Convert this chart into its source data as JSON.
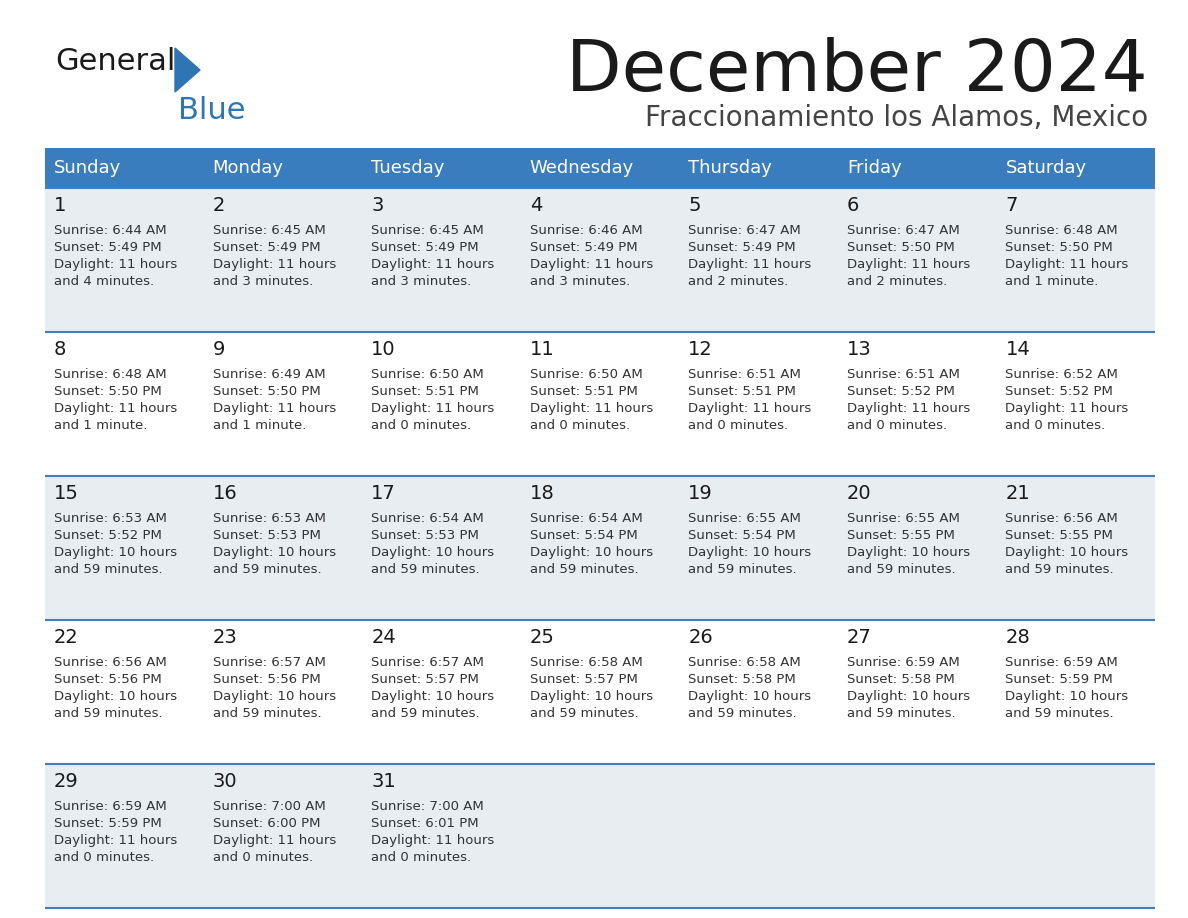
{
  "title": "December 2024",
  "subtitle": "Fraccionamiento los Alamos, Mexico",
  "days_of_week": [
    "Sunday",
    "Monday",
    "Tuesday",
    "Wednesday",
    "Thursday",
    "Friday",
    "Saturday"
  ],
  "header_bg": "#3a7dbf",
  "header_text": "#ffffff",
  "row_bg_odd": "#e8edf2",
  "row_bg_even": "#ffffff",
  "cell_border": "#4080c0",
  "day_num_color": "#1a1a1a",
  "info_color": "#333333",
  "title_color": "#1a1a1a",
  "subtitle_color": "#444444",
  "logo_general_color": "#1a1a1a",
  "logo_blue_color": "#2e75b6",
  "logo_triangle_color": "#2e75b6",
  "calendar": [
    [
      {
        "day": 1,
        "sunrise": "6:44 AM",
        "sunset": "5:49 PM",
        "daylight": "11 hours and 4 minutes."
      },
      {
        "day": 2,
        "sunrise": "6:45 AM",
        "sunset": "5:49 PM",
        "daylight": "11 hours and 3 minutes."
      },
      {
        "day": 3,
        "sunrise": "6:45 AM",
        "sunset": "5:49 PM",
        "daylight": "11 hours and 3 minutes."
      },
      {
        "day": 4,
        "sunrise": "6:46 AM",
        "sunset": "5:49 PM",
        "daylight": "11 hours and 3 minutes."
      },
      {
        "day": 5,
        "sunrise": "6:47 AM",
        "sunset": "5:49 PM",
        "daylight": "11 hours and 2 minutes."
      },
      {
        "day": 6,
        "sunrise": "6:47 AM",
        "sunset": "5:50 PM",
        "daylight": "11 hours and 2 minutes."
      },
      {
        "day": 7,
        "sunrise": "6:48 AM",
        "sunset": "5:50 PM",
        "daylight": "11 hours and 1 minute."
      }
    ],
    [
      {
        "day": 8,
        "sunrise": "6:48 AM",
        "sunset": "5:50 PM",
        "daylight": "11 hours and 1 minute."
      },
      {
        "day": 9,
        "sunrise": "6:49 AM",
        "sunset": "5:50 PM",
        "daylight": "11 hours and 1 minute."
      },
      {
        "day": 10,
        "sunrise": "6:50 AM",
        "sunset": "5:51 PM",
        "daylight": "11 hours and 0 minutes."
      },
      {
        "day": 11,
        "sunrise": "6:50 AM",
        "sunset": "5:51 PM",
        "daylight": "11 hours and 0 minutes."
      },
      {
        "day": 12,
        "sunrise": "6:51 AM",
        "sunset": "5:51 PM",
        "daylight": "11 hours and 0 minutes."
      },
      {
        "day": 13,
        "sunrise": "6:51 AM",
        "sunset": "5:52 PM",
        "daylight": "11 hours and 0 minutes."
      },
      {
        "day": 14,
        "sunrise": "6:52 AM",
        "sunset": "5:52 PM",
        "daylight": "11 hours and 0 minutes."
      }
    ],
    [
      {
        "day": 15,
        "sunrise": "6:53 AM",
        "sunset": "5:52 PM",
        "daylight": "10 hours and 59 minutes."
      },
      {
        "day": 16,
        "sunrise": "6:53 AM",
        "sunset": "5:53 PM",
        "daylight": "10 hours and 59 minutes."
      },
      {
        "day": 17,
        "sunrise": "6:54 AM",
        "sunset": "5:53 PM",
        "daylight": "10 hours and 59 minutes."
      },
      {
        "day": 18,
        "sunrise": "6:54 AM",
        "sunset": "5:54 PM",
        "daylight": "10 hours and 59 minutes."
      },
      {
        "day": 19,
        "sunrise": "6:55 AM",
        "sunset": "5:54 PM",
        "daylight": "10 hours and 59 minutes."
      },
      {
        "day": 20,
        "sunrise": "6:55 AM",
        "sunset": "5:55 PM",
        "daylight": "10 hours and 59 minutes."
      },
      {
        "day": 21,
        "sunrise": "6:56 AM",
        "sunset": "5:55 PM",
        "daylight": "10 hours and 59 minutes."
      }
    ],
    [
      {
        "day": 22,
        "sunrise": "6:56 AM",
        "sunset": "5:56 PM",
        "daylight": "10 hours and 59 minutes."
      },
      {
        "day": 23,
        "sunrise": "6:57 AM",
        "sunset": "5:56 PM",
        "daylight": "10 hours and 59 minutes."
      },
      {
        "day": 24,
        "sunrise": "6:57 AM",
        "sunset": "5:57 PM",
        "daylight": "10 hours and 59 minutes."
      },
      {
        "day": 25,
        "sunrise": "6:58 AM",
        "sunset": "5:57 PM",
        "daylight": "10 hours and 59 minutes."
      },
      {
        "day": 26,
        "sunrise": "6:58 AM",
        "sunset": "5:58 PM",
        "daylight": "10 hours and 59 minutes."
      },
      {
        "day": 27,
        "sunrise": "6:59 AM",
        "sunset": "5:58 PM",
        "daylight": "10 hours and 59 minutes."
      },
      {
        "day": 28,
        "sunrise": "6:59 AM",
        "sunset": "5:59 PM",
        "daylight": "10 hours and 59 minutes."
      }
    ],
    [
      {
        "day": 29,
        "sunrise": "6:59 AM",
        "sunset": "5:59 PM",
        "daylight": "11 hours and 0 minutes."
      },
      {
        "day": 30,
        "sunrise": "7:00 AM",
        "sunset": "6:00 PM",
        "daylight": "11 hours and 0 minutes."
      },
      {
        "day": 31,
        "sunrise": "7:00 AM",
        "sunset": "6:01 PM",
        "daylight": "11 hours and 0 minutes."
      },
      null,
      null,
      null,
      null
    ]
  ]
}
